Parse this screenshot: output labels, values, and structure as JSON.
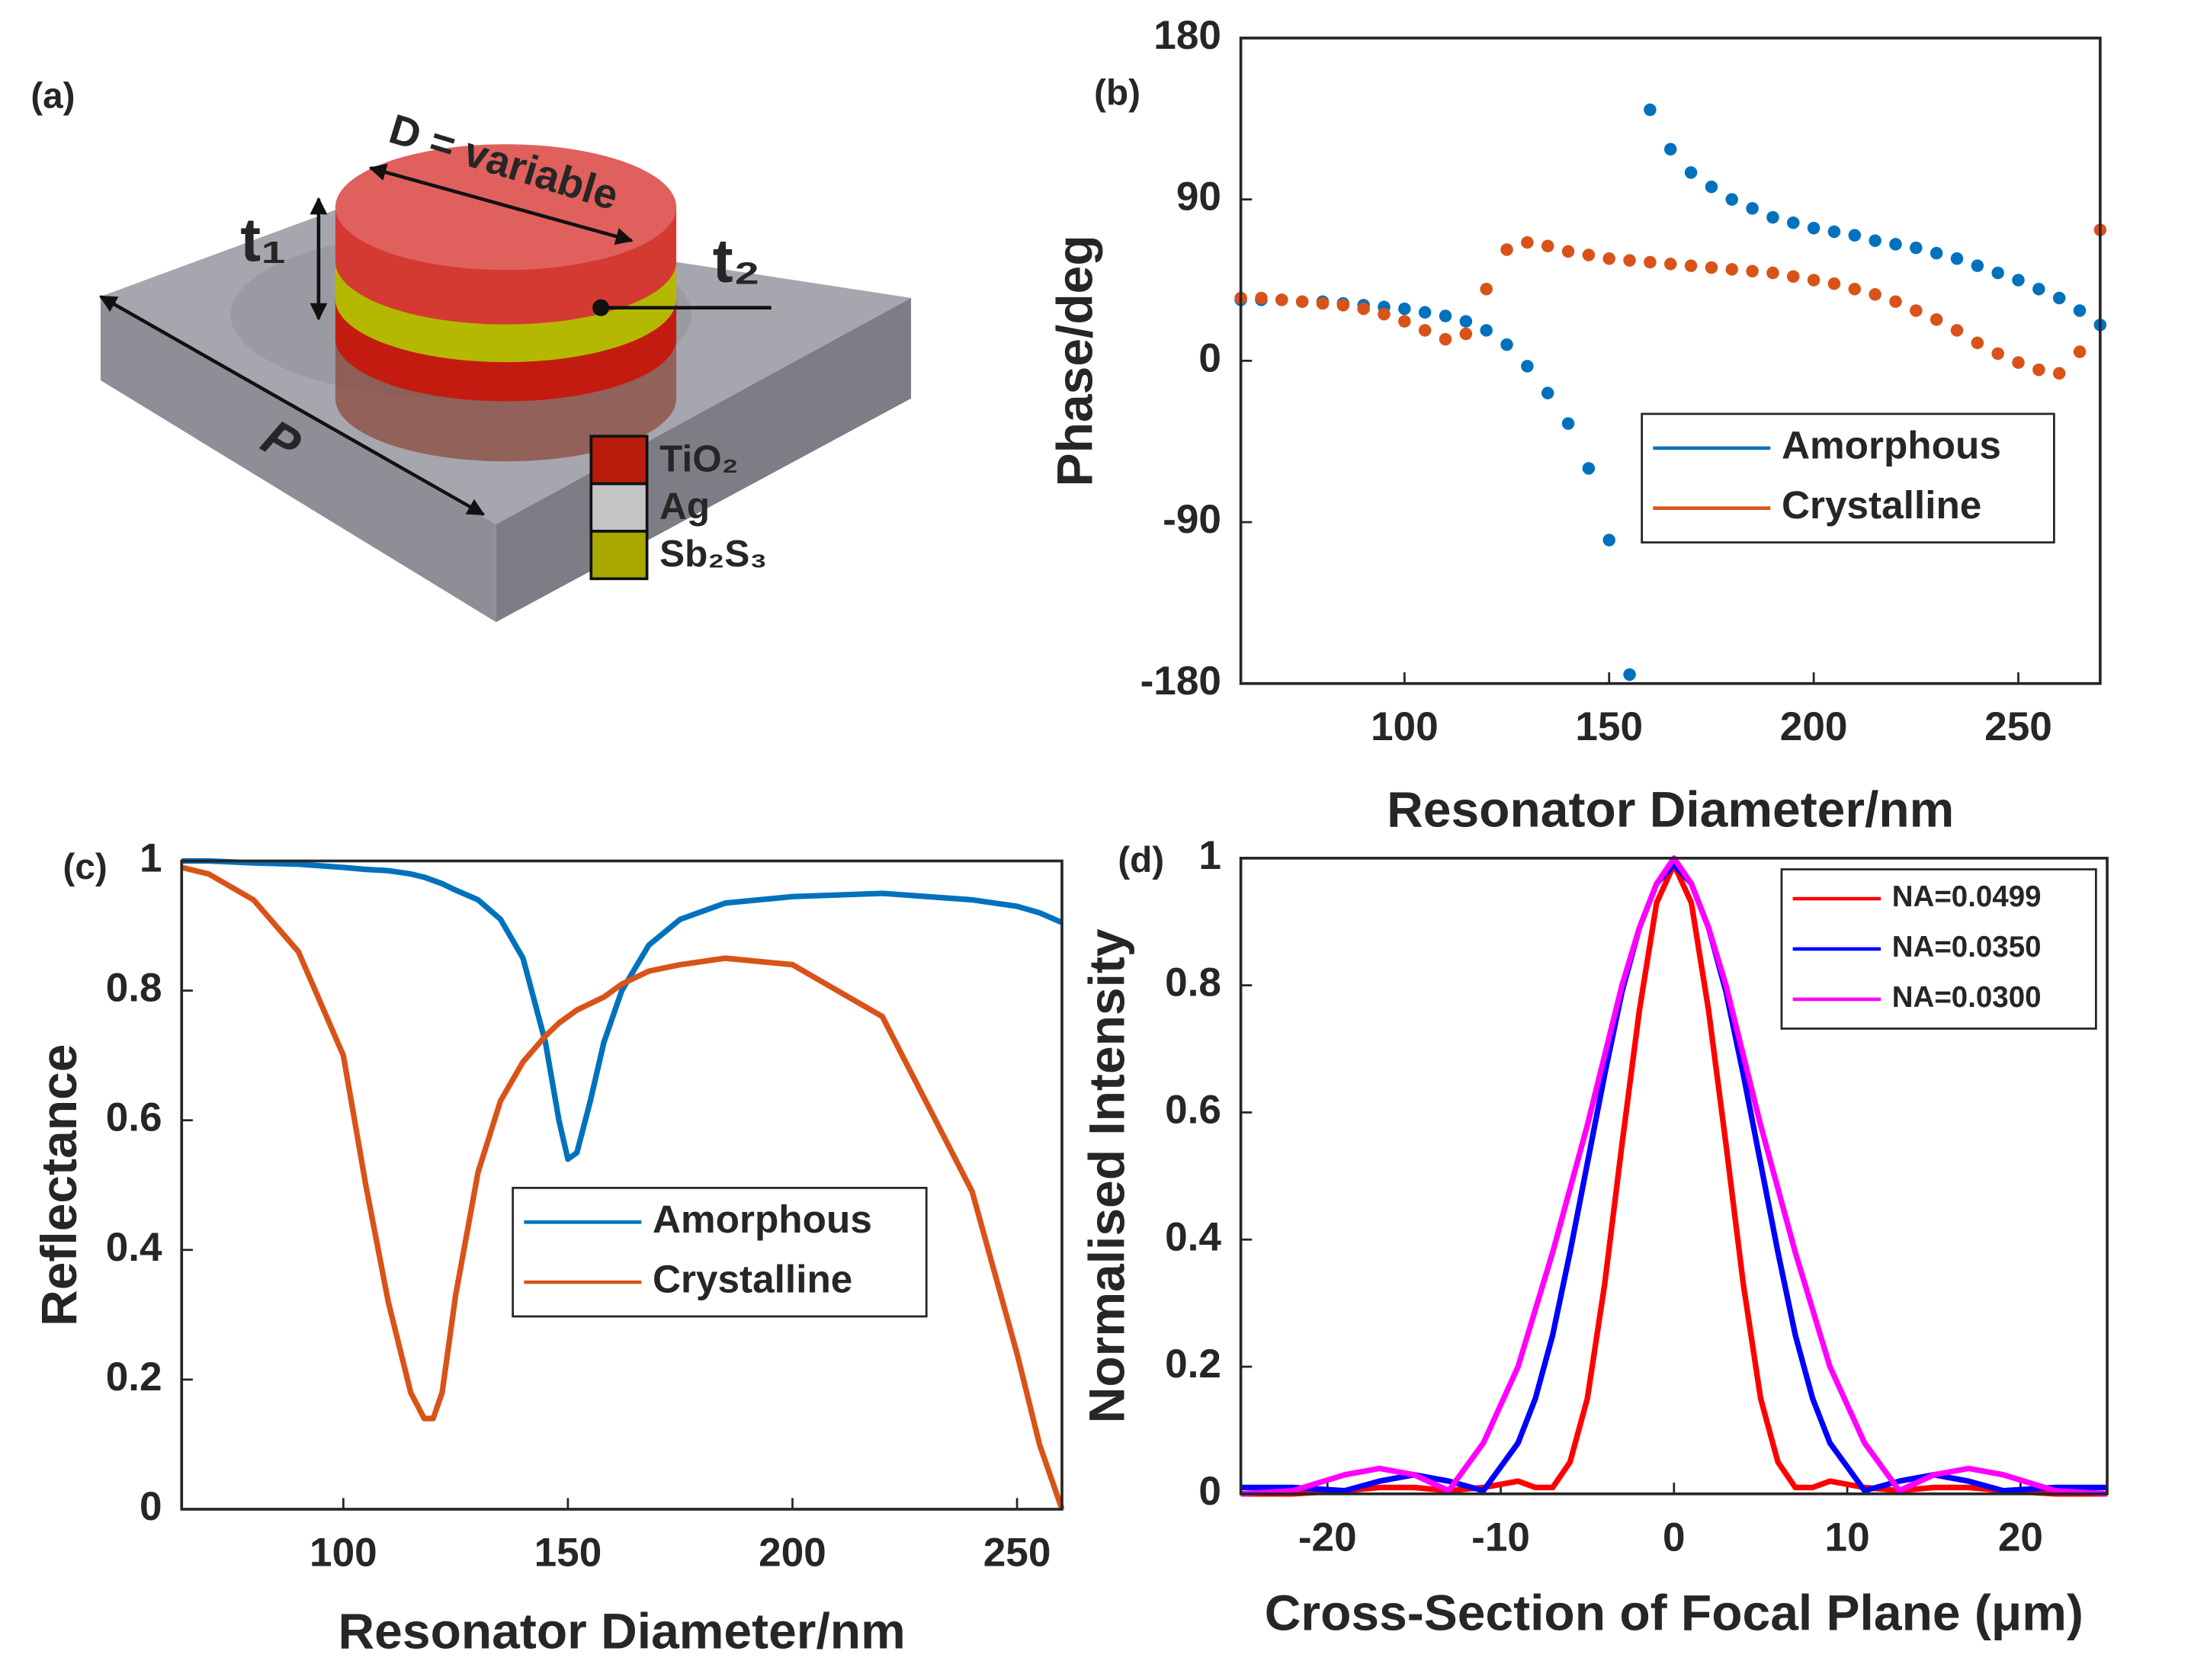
{
  "diagram": {
    "label": "(a)",
    "dimension": "D = variable",
    "t1": "t₁",
    "t2": "t₂",
    "period": "P",
    "legend": [
      {
        "name": "TiO₂",
        "color": "#b81c0c"
      },
      {
        "name": "Ag",
        "color": "#c4c4c4"
      },
      {
        "name": "Sb₂S₃",
        "color": "#a8a800"
      }
    ]
  },
  "chart_data": [
    {
      "type": "scatter",
      "label": "(b)",
      "xlabel": "Resonator Diameter/nm",
      "ylabel": "Phase/deg",
      "xlim": [
        60,
        270
      ],
      "xticks": [
        100,
        150,
        200,
        250
      ],
      "ylim": [
        -180,
        180
      ],
      "yticks": [
        -180,
        -90,
        0,
        90,
        180
      ],
      "legend": "right",
      "x": [
        60,
        65,
        70,
        75,
        80,
        85,
        90,
        95,
        100,
        105,
        110,
        115,
        120,
        125,
        130,
        135,
        140,
        145,
        150,
        155,
        160,
        165,
        170,
        175,
        180,
        185,
        190,
        195,
        200,
        205,
        210,
        215,
        220,
        225,
        230,
        235,
        240,
        245,
        250,
        255,
        260,
        265,
        270
      ],
      "series": [
        {
          "name": "Amorphous",
          "color": "#0072bd",
          "values": [
            34,
            34,
            34,
            33,
            33,
            32,
            31,
            30,
            29,
            27,
            25,
            22,
            17,
            9,
            -3,
            -18,
            -35,
            -60,
            -100,
            -175,
            140,
            118,
            105,
            97,
            90,
            85,
            80,
            77,
            74,
            72,
            70,
            67,
            65,
            63,
            60,
            57,
            53,
            49,
            45,
            40,
            35,
            28,
            20
          ]
        },
        {
          "name": "Crystalline",
          "color": "#d95319",
          "values": [
            35,
            35,
            34,
            33,
            32,
            31,
            29,
            26,
            22,
            17,
            12,
            15,
            40,
            62,
            66,
            64,
            61,
            59,
            57,
            56,
            55,
            54,
            53,
            52,
            51,
            50,
            49,
            47,
            45,
            43,
            40,
            37,
            33,
            28,
            23,
            17,
            10,
            4,
            -1,
            -5,
            -7,
            5,
            73
          ]
        }
      ]
    },
    {
      "type": "line",
      "label": "(c)",
      "xlabel": "Resonator Diameter/nm",
      "ylabel": "Reflectance",
      "xlim": [
        64,
        260
      ],
      "xticks": [
        100,
        150,
        200,
        250
      ],
      "ylim": [
        0,
        1
      ],
      "yticks": [
        0,
        0.2,
        0.4,
        0.6,
        0.8,
        1
      ],
      "legend": "center",
      "x": [
        64,
        70,
        80,
        90,
        100,
        105,
        110,
        115,
        118,
        120,
        122,
        125,
        130,
        135,
        140,
        145,
        148,
        150,
        152,
        155,
        158,
        162,
        168,
        175,
        185,
        200,
        220,
        240,
        250,
        255,
        260
      ],
      "series": [
        {
          "name": "Amorphous",
          "color": "#0072bd",
          "values": [
            1,
            1,
            0.997,
            0.995,
            0.99,
            0.987,
            0.985,
            0.98,
            0.975,
            0.97,
            0.965,
            0.955,
            0.94,
            0.91,
            0.85,
            0.72,
            0.6,
            0.54,
            0.55,
            0.63,
            0.72,
            0.8,
            0.87,
            0.91,
            0.935,
            0.945,
            0.95,
            0.94,
            0.93,
            0.92,
            0.905
          ]
        },
        {
          "name": "Crystalline",
          "color": "#d95319",
          "values": [
            0.99,
            0.98,
            0.94,
            0.86,
            0.7,
            0.5,
            0.32,
            0.18,
            0.14,
            0.14,
            0.18,
            0.33,
            0.52,
            0.63,
            0.69,
            0.73,
            0.75,
            0.76,
            0.77,
            0.78,
            0.79,
            0.81,
            0.83,
            0.84,
            0.85,
            0.84,
            0.76,
            0.49,
            0.24,
            0.1,
            0
          ]
        }
      ]
    },
    {
      "type": "line",
      "label": "(d)",
      "xlabel": "Cross-Section of Focal Plane (μm)",
      "ylabel": "Normalised Intensity",
      "xlim": [
        -25,
        25
      ],
      "xticks": [
        -20,
        -10,
        0,
        10,
        20
      ],
      "ylim": [
        0,
        1
      ],
      "yticks": [
        0,
        0.2,
        0.4,
        0.6,
        0.8,
        1
      ],
      "legend": "upper right",
      "x": [
        -25,
        -22,
        -19,
        -17,
        -15,
        -13,
        -11,
        -9,
        -8,
        -7,
        -6,
        -5,
        -4,
        -3,
        -2,
        -1,
        0,
        1,
        2,
        3,
        4,
        5,
        6,
        7,
        8,
        9,
        11,
        13,
        15,
        17,
        19,
        22,
        25
      ],
      "series": [
        {
          "name": "NA=0.0499",
          "color": "#ff0000",
          "values": [
            0,
            0,
            0.005,
            0.01,
            0.01,
            0.005,
            0.01,
            0.02,
            0.01,
            0.01,
            0.05,
            0.15,
            0.33,
            0.55,
            0.76,
            0.93,
            0.99,
            0.93,
            0.76,
            0.55,
            0.33,
            0.15,
            0.05,
            0.01,
            0.01,
            0.02,
            0.01,
            0.005,
            0.01,
            0.01,
            0.005,
            0,
            0
          ]
        },
        {
          "name": "NA=0.0350",
          "color": "#0000ff",
          "values": [
            0.01,
            0.01,
            0.005,
            0.02,
            0.03,
            0.02,
            0.005,
            0.08,
            0.15,
            0.25,
            0.38,
            0.52,
            0.66,
            0.79,
            0.89,
            0.96,
            0.99,
            0.96,
            0.89,
            0.79,
            0.66,
            0.52,
            0.38,
            0.25,
            0.15,
            0.08,
            0.005,
            0.02,
            0.03,
            0.02,
            0.005,
            0.01,
            0.01
          ]
        },
        {
          "name": "NA=0.0300",
          "color": "#ff00ff",
          "values": [
            0,
            0.005,
            0.03,
            0.04,
            0.03,
            0.005,
            0.08,
            0.2,
            0.29,
            0.38,
            0.48,
            0.58,
            0.69,
            0.8,
            0.89,
            0.96,
            1,
            0.96,
            0.89,
            0.8,
            0.69,
            0.58,
            0.48,
            0.38,
            0.29,
            0.2,
            0.08,
            0.005,
            0.03,
            0.04,
            0.03,
            0.005,
            0
          ]
        }
      ]
    }
  ]
}
